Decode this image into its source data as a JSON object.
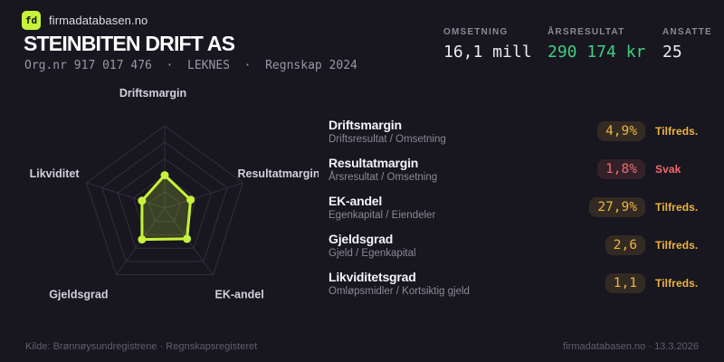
{
  "brand": {
    "logo_text": "fd",
    "site_name": "firmadatabasen.no"
  },
  "header": {
    "company_name": "STEINBITEN DRIFT AS",
    "meta_line": "Org.nr 917 017 476  ·  LEKNES  ·  Regnskap 2024"
  },
  "key_stats": [
    {
      "label": "OMSETNING",
      "value": "16,1 mill",
      "tone": "default"
    },
    {
      "label": "ÅRSRESULTAT",
      "value": "290 174 kr",
      "tone": "positive"
    },
    {
      "label": "ANSATTE",
      "value": "25",
      "tone": "default"
    }
  ],
  "chart_data": {
    "type": "radar",
    "categories": [
      "Driftsmargin",
      "Resultatmargin",
      "EK-andel",
      "Gjeldsgrad",
      "Likviditet"
    ],
    "values": [
      0.4,
      0.33,
      0.46,
      0.47,
      0.29
    ],
    "value_range": [
      0,
      1
    ],
    "rings": 5,
    "grid": true,
    "line_color": "#c6f23a",
    "fill_color": "rgba(198,242,58,0.20)",
    "grid_color": "#312f3c",
    "label_color": "#d2d0db"
  },
  "metrics": [
    {
      "title": "Driftsmargin",
      "formula": "Driftsresultat / Omsetning",
      "value": "4,9%",
      "status": "Tilfreds.",
      "tone": "ok"
    },
    {
      "title": "Resultatmargin",
      "formula": "Årsresultat / Omsetning",
      "value": "1,8%",
      "status": "Svak",
      "tone": "weak"
    },
    {
      "title": "EK-andel",
      "formula": "Egenkapital / Eiendeler",
      "value": "27,9%",
      "status": "Tilfreds.",
      "tone": "ok"
    },
    {
      "title": "Gjeldsgrad",
      "formula": "Gjeld / Egenkapital",
      "value": "2,6",
      "status": "Tilfreds.",
      "tone": "ok"
    },
    {
      "title": "Likviditetsgrad",
      "formula": "Omløpsmidler / Kortsiktig gjeld",
      "value": "1,1",
      "status": "Tilfreds.",
      "tone": "ok"
    }
  ],
  "footer": {
    "source": "Kilde: Brønnøysundregistrene · Regnskapsregisteret",
    "site_date": "firmadatabasen.no · 13.3.2026"
  },
  "colors": {
    "background": "#18161f",
    "accent_green": "#c6f23a",
    "positive_green": "#3ecf82",
    "status_ok": "#ecb43e",
    "status_weak": "#ef6b6e"
  }
}
